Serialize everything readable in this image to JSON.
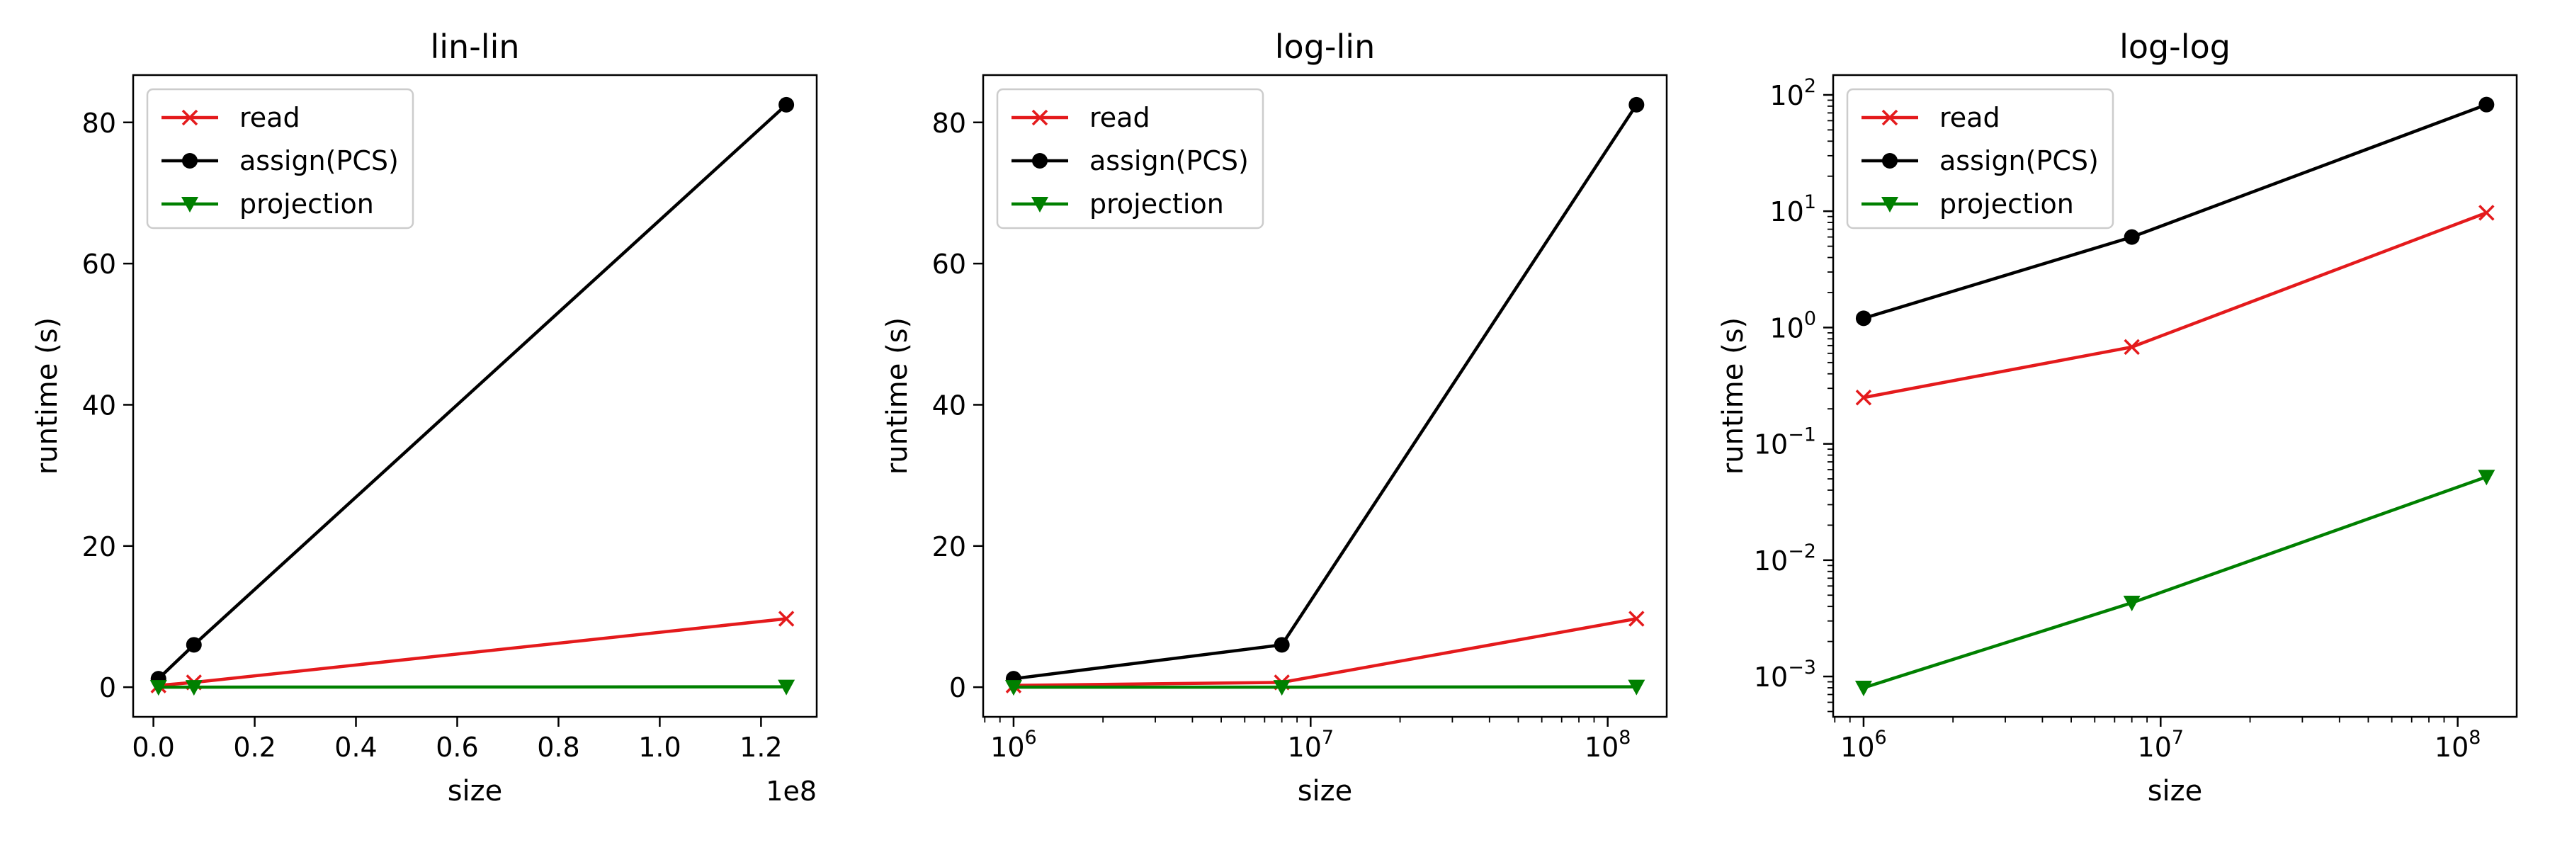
{
  "chart_data": [
    {
      "type": "line",
      "title": "lin-lin",
      "xlabel": "size",
      "ylabel": "runtime (s)",
      "xscale": "linear",
      "yscale": "linear",
      "xlim": [
        -4000000,
        131000000
      ],
      "ylim": [
        -4.2,
        86.7
      ],
      "x_offset_label": "1e8",
      "xticks": [
        0,
        20000000,
        40000000,
        60000000,
        80000000,
        100000000,
        120000000
      ],
      "xtick_labels": [
        "0.0",
        "0.2",
        "0.4",
        "0.6",
        "0.8",
        "1.0",
        "1.2"
      ],
      "yticks": [
        0,
        20,
        40,
        60,
        80
      ],
      "ytick_labels": [
        "0",
        "20",
        "40",
        "60",
        "80"
      ],
      "legend": "top-left",
      "grid": false,
      "x": [
        1000000,
        8000000,
        125000000
      ],
      "series": [
        {
          "name": "read",
          "values": [
            0.25,
            0.68,
            9.7
          ],
          "color": "#e41a1c",
          "marker": "x"
        },
        {
          "name": "assign(PCS)",
          "values": [
            1.2,
            6.0,
            82.5
          ],
          "color": "#000000",
          "marker": "circle"
        },
        {
          "name": "projection",
          "values": [
            0.0008,
            0.0043,
            0.052
          ],
          "color": "#008000",
          "marker": "triangle-down"
        }
      ]
    },
    {
      "type": "line",
      "title": "log-lin",
      "xlabel": "size",
      "ylabel": "runtime (s)",
      "xscale": "log",
      "yscale": "linear",
      "xlim": [
        790000,
        158000000
      ],
      "ylim": [
        -4.2,
        86.7
      ],
      "xticks": [
        1000000,
        10000000,
        100000000
      ],
      "xtick_labels": [
        "10^6",
        "10^7",
        "10^8"
      ],
      "yticks": [
        0,
        20,
        40,
        60,
        80
      ],
      "ytick_labels": [
        "0",
        "20",
        "40",
        "60",
        "80"
      ],
      "legend": "top-left",
      "grid": false,
      "x": [
        1000000,
        8000000,
        125000000
      ],
      "series": [
        {
          "name": "read",
          "values": [
            0.25,
            0.68,
            9.7
          ],
          "color": "#e41a1c",
          "marker": "x"
        },
        {
          "name": "assign(PCS)",
          "values": [
            1.2,
            6.0,
            82.5
          ],
          "color": "#000000",
          "marker": "circle"
        },
        {
          "name": "projection",
          "values": [
            0.0008,
            0.0043,
            0.052
          ],
          "color": "#008000",
          "marker": "triangle-down"
        }
      ]
    },
    {
      "type": "line",
      "title": "log-log",
      "xlabel": "size",
      "ylabel": "runtime (s)",
      "xscale": "log",
      "yscale": "log",
      "xlim": [
        790000,
        158000000
      ],
      "ylim": [
        0.00045,
        148
      ],
      "xticks": [
        1000000,
        10000000,
        100000000
      ],
      "xtick_labels": [
        "10^6",
        "10^7",
        "10^8"
      ],
      "yticks": [
        0.001,
        0.01,
        0.1,
        1,
        10,
        100
      ],
      "ytick_labels": [
        "10^-3",
        "10^-2",
        "10^-1",
        "10^0",
        "10^1",
        "10^2"
      ],
      "legend": "top-left",
      "grid": false,
      "x": [
        1000000,
        8000000,
        125000000
      ],
      "series": [
        {
          "name": "read",
          "values": [
            0.25,
            0.68,
            9.7
          ],
          "color": "#e41a1c",
          "marker": "x"
        },
        {
          "name": "assign(PCS)",
          "values": [
            1.2,
            6.0,
            82.5
          ],
          "color": "#000000",
          "marker": "circle"
        },
        {
          "name": "projection",
          "values": [
            0.0008,
            0.0043,
            0.052
          ],
          "color": "#008000",
          "marker": "triangle-down"
        }
      ]
    }
  ]
}
